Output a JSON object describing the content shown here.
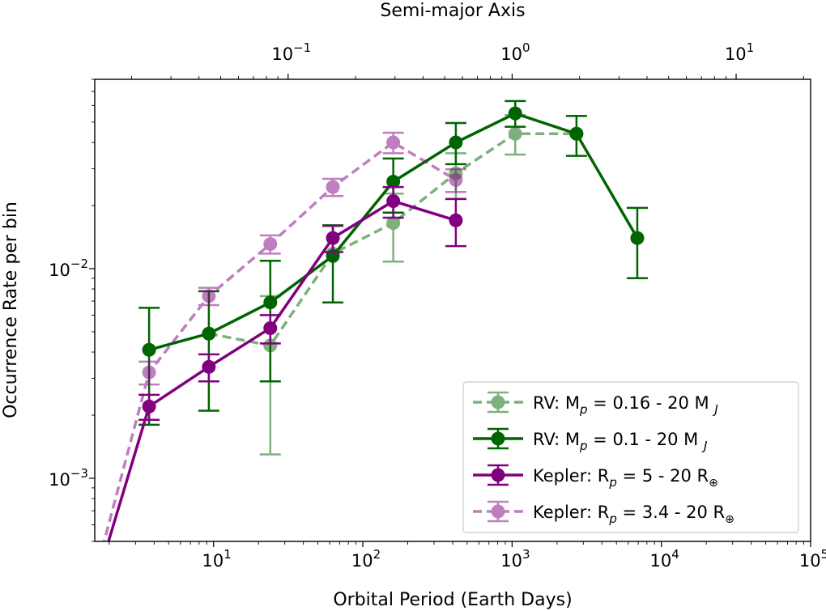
{
  "chart_data": {
    "type": "line",
    "xlabel": "Orbital Period (Earth Days)",
    "ylabel": "Occurrence Rate per bin",
    "top_xlabel": "Semi-major Axis",
    "xscale": "log",
    "yscale": "log",
    "xlim": [
      1.6,
      100000
    ],
    "ylim": [
      0.0005,
      0.08
    ],
    "top_xlim": [
      0.0137,
      21.5
    ],
    "x_tick_labels": [
      {
        "value": 10,
        "base": "10",
        "exp": "1"
      },
      {
        "value": 100,
        "base": "10",
        "exp": "2"
      },
      {
        "value": 1000,
        "base": "10",
        "exp": "3"
      },
      {
        "value": 10000,
        "base": "10",
        "exp": "4"
      },
      {
        "value": 100000,
        "base": "10",
        "exp": "5"
      }
    ],
    "y_tick_labels": [
      {
        "value": 0.001,
        "base": "10",
        "exp": "−3"
      },
      {
        "value": 0.01,
        "base": "10",
        "exp": "−2"
      }
    ],
    "top_tick_labels": [
      {
        "value": 0.1,
        "base": "10",
        "exp": "−1"
      },
      {
        "value": 1,
        "base": "10",
        "exp": "0"
      },
      {
        "value": 10,
        "base": "10",
        "exp": "1"
      }
    ],
    "legend_position": "lower right",
    "series": [
      {
        "label_prefix": "RV: M",
        "label_sub": "p",
        "label_mid": " = 0.16 - 20 M ",
        "label_sub2": "J",
        "label_suffix": "",
        "color": "#006400",
        "style": "dashed",
        "opacity": 0.5,
        "points": [
          {
            "x": 9.3,
            "y": 0.0049,
            "lo": 0.0049,
            "hi": 0.0049
          },
          {
            "x": 24,
            "y": 0.0043,
            "lo": 0.0013,
            "hi": 0.0074
          },
          {
            "x": 63,
            "y": 0.0118,
            "lo": 0.0118,
            "hi": 0.0118
          },
          {
            "x": 160,
            "y": 0.0165,
            "lo": 0.0108,
            "hi": 0.0228
          },
          {
            "x": 420,
            "y": 0.0285,
            "lo": 0.0215,
            "hi": 0.0355
          },
          {
            "x": 1050,
            "y": 0.044,
            "lo": 0.035,
            "hi": 0.054
          },
          {
            "x": 2700,
            "y": 0.044,
            "lo": 0.044,
            "hi": 0.044
          }
        ]
      },
      {
        "label_prefix": "RV: M",
        "label_sub": "p",
        "label_mid": " = 0.1 - 20 M ",
        "label_sub2": "J",
        "label_suffix": "",
        "color": "#006400",
        "style": "solid",
        "opacity": 1,
        "points": [
          {
            "x": 3.7,
            "y": 0.0041,
            "lo": 0.0018,
            "hi": 0.0065
          },
          {
            "x": 9.3,
            "y": 0.0049,
            "lo": 0.0021,
            "hi": 0.0078
          },
          {
            "x": 24,
            "y": 0.0069,
            "lo": 0.0029,
            "hi": 0.0109
          },
          {
            "x": 63,
            "y": 0.0115,
            "lo": 0.0069,
            "hi": 0.0161
          },
          {
            "x": 160,
            "y": 0.026,
            "lo": 0.0185,
            "hi": 0.0335
          },
          {
            "x": 420,
            "y": 0.04,
            "lo": 0.0315,
            "hi": 0.0495
          },
          {
            "x": 1050,
            "y": 0.055,
            "lo": 0.0475,
            "hi": 0.063
          },
          {
            "x": 2700,
            "y": 0.044,
            "lo": 0.0345,
            "hi": 0.0535
          },
          {
            "x": 6900,
            "y": 0.014,
            "lo": 0.009,
            "hi": 0.0195
          }
        ]
      },
      {
        "label_prefix": "Kepler: R",
        "label_sub": "p",
        "label_mid": " = 5 - 20 R",
        "label_sub2": "",
        "label_suffix": "⊕",
        "color": "#800080",
        "style": "solid",
        "opacity": 1,
        "points": [
          {
            "x": 1.7,
            "y": 0.00035,
            "lo": 0.00035,
            "hi": 0.00035
          },
          {
            "x": 3.7,
            "y": 0.0022,
            "lo": 0.0019,
            "hi": 0.0025
          },
          {
            "x": 9.3,
            "y": 0.0034,
            "lo": 0.0029,
            "hi": 0.0039
          },
          {
            "x": 24,
            "y": 0.0052,
            "lo": 0.0044,
            "hi": 0.006
          },
          {
            "x": 63,
            "y": 0.014,
            "lo": 0.012,
            "hi": 0.016
          },
          {
            "x": 160,
            "y": 0.021,
            "lo": 0.0175,
            "hi": 0.0245
          },
          {
            "x": 420,
            "y": 0.017,
            "lo": 0.0128,
            "hi": 0.0215
          }
        ]
      },
      {
        "label_prefix": "Kepler: R",
        "label_sub": "p",
        "label_mid": " = 3.4 - 20 R",
        "label_sub2": "",
        "label_suffix": "⊕",
        "color": "#800080",
        "style": "dashed",
        "opacity": 0.5,
        "points": [
          {
            "x": 1.7,
            "y": 0.0004,
            "lo": 0.0004,
            "hi": 0.0004
          },
          {
            "x": 3.7,
            "y": 0.0032,
            "lo": 0.0028,
            "hi": 0.0036
          },
          {
            "x": 9.3,
            "y": 0.0074,
            "lo": 0.0067,
            "hi": 0.0081
          },
          {
            "x": 24,
            "y": 0.0131,
            "lo": 0.0118,
            "hi": 0.0144
          },
          {
            "x": 63,
            "y": 0.0245,
            "lo": 0.0222,
            "hi": 0.0268
          },
          {
            "x": 160,
            "y": 0.04,
            "lo": 0.0355,
            "hi": 0.0445
          },
          {
            "x": 420,
            "y": 0.0265,
            "lo": 0.0232,
            "hi": 0.0298
          }
        ]
      }
    ]
  }
}
